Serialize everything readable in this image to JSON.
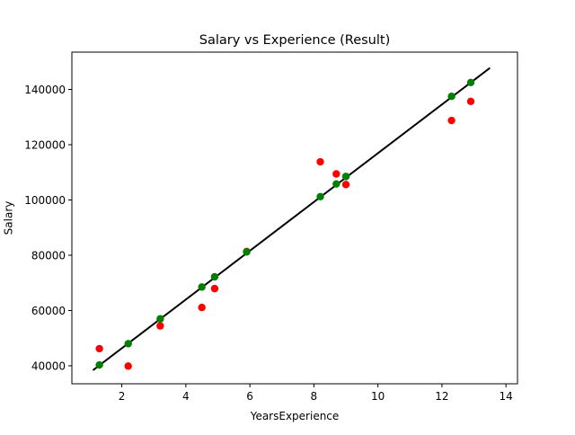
{
  "chart_data": {
    "type": "scatter",
    "title": "Salary vs Experience (Result)",
    "xlabel": "YearsExperience",
    "ylabel": "Salary",
    "xlim": [
      0.44,
      14.36
    ],
    "ylim": [
      33500,
      153500
    ],
    "xticks": [
      2,
      4,
      6,
      8,
      10,
      12,
      14
    ],
    "yticks": [
      40000,
      60000,
      80000,
      100000,
      120000,
      140000
    ],
    "grid": false,
    "series": [
      {
        "kind": "scatter",
        "color": "#ff0000",
        "x": [
          1.3,
          2.2,
          3.2,
          4.5,
          4.9,
          5.9,
          8.2,
          8.7,
          9.0,
          12.3,
          12.9
        ],
        "y": [
          46205,
          39891,
          54445,
          61111,
          67938,
          81363,
          113812,
          109431,
          105582,
          128765,
          135675
        ]
      },
      {
        "kind": "scatter",
        "color": "#008000",
        "x": [
          1.3,
          2.2,
          3.2,
          4.5,
          4.9,
          5.9,
          8.2,
          8.7,
          9.0,
          12.3,
          12.9
        ],
        "y": [
          40300,
          48000,
          57000,
          68500,
          72200,
          81200,
          101200,
          105800,
          108500,
          137500,
          142500
        ]
      },
      {
        "kind": "line",
        "color": "#000000",
        "x": [
          1.1,
          13.5
        ],
        "y": [
          38400,
          147800
        ]
      }
    ]
  }
}
